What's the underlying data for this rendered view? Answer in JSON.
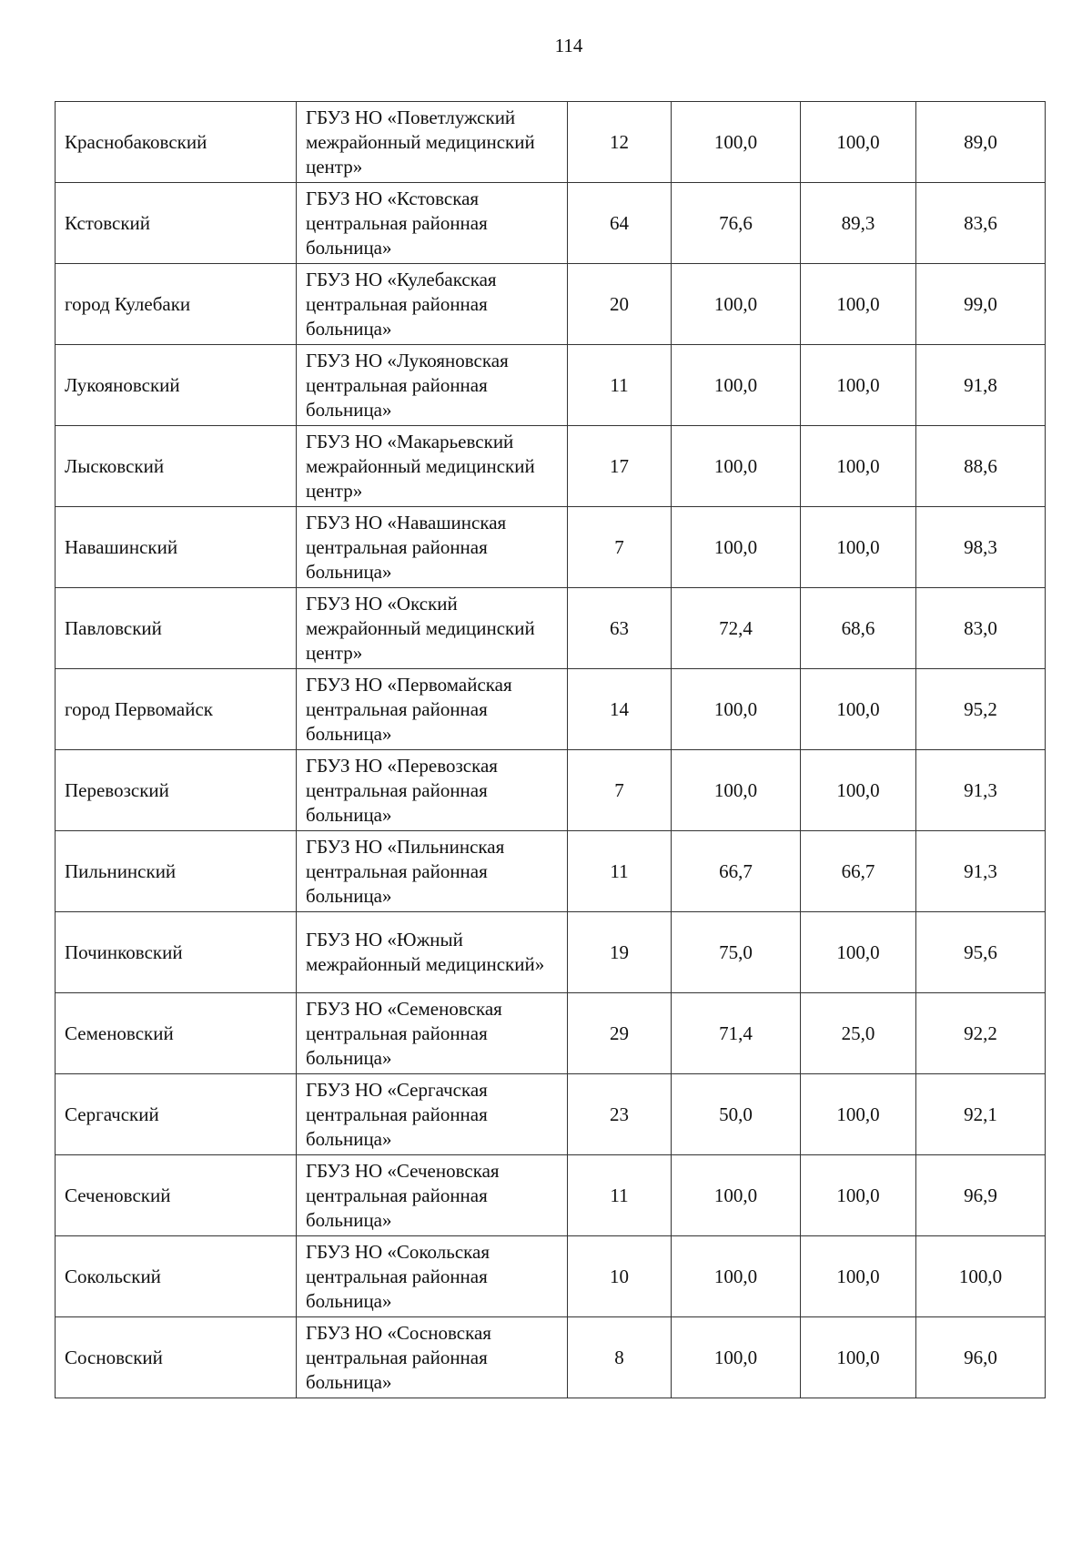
{
  "page_number": "114",
  "rows": [
    {
      "district": "Краснобаковский",
      "org": "ГБУЗ НО «Поветлужский межрайонный медицинский центр»",
      "n": "12",
      "v1": "100,0",
      "v2": "100,0",
      "v3": "89,0"
    },
    {
      "district": "Кстовский",
      "org": "ГБУЗ НО «Кстовская центральная районная больница»",
      "n": "64",
      "v1": "76,6",
      "v2": "89,3",
      "v3": "83,6"
    },
    {
      "district": "город Кулебаки",
      "org": "ГБУЗ НО «Кулебакская центральная районная больница»",
      "n": "20",
      "v1": "100,0",
      "v2": "100,0",
      "v3": "99,0"
    },
    {
      "district": "Лукояновский",
      "org": "ГБУЗ НО «Лукояновская центральная районная больница»",
      "n": "11",
      "v1": "100,0",
      "v2": "100,0",
      "v3": "91,8"
    },
    {
      "district": "Лысковский",
      "org": "ГБУЗ НО «Макарьевский межрайонный медицинский центр»",
      "n": "17",
      "v1": "100,0",
      "v2": "100,0",
      "v3": "88,6"
    },
    {
      "district": "Навашинский",
      "org": "ГБУЗ НО «Навашинская центральная районная больница»",
      "n": "7",
      "v1": "100,0",
      "v2": "100,0",
      "v3": "98,3"
    },
    {
      "district": "Павловский",
      "org": "ГБУЗ НО «Окский межрайонный медицинский центр»",
      "n": "63",
      "v1": "72,4",
      "v2": "68,6",
      "v3": "83,0"
    },
    {
      "district": "город Первомайск",
      "org": "ГБУЗ НО «Первомайская центральная районная больница»",
      "n": "14",
      "v1": "100,0",
      "v2": "100,0",
      "v3": "95,2"
    },
    {
      "district": "Перевозский",
      "org": "ГБУЗ НО «Перевозская центральная районная больница»",
      "n": "7",
      "v1": "100,0",
      "v2": "100,0",
      "v3": "91,3"
    },
    {
      "district": "Пильнинский",
      "org": "ГБУЗ НО «Пильнинская центральная районная больница»",
      "n": "11",
      "v1": "66,7",
      "v2": "66,7",
      "v3": "91,3"
    },
    {
      "district": "Починковский",
      "org": "ГБУЗ НО «Южный межрайонный медицинский»",
      "n": "19",
      "v1": "75,0",
      "v2": "100,0",
      "v3": "95,6"
    },
    {
      "district": "Семеновский",
      "org": "ГБУЗ НО «Семеновская центральная районная больница»",
      "n": "29",
      "v1": "71,4",
      "v2": "25,0",
      "v3": "92,2"
    },
    {
      "district": "Сергачский",
      "org": "ГБУЗ НО «Сергачская центральная районная больница»",
      "n": "23",
      "v1": "50,0",
      "v2": "100,0",
      "v3": "92,1"
    },
    {
      "district": "Сеченовский",
      "org": "ГБУЗ НО «Сеченовская центральная районная больница»",
      "n": "11",
      "v1": "100,0",
      "v2": "100,0",
      "v3": "96,9"
    },
    {
      "district": "Сокольский",
      "org": "ГБУЗ НО «Сокольская центральная районная больница»",
      "n": "10",
      "v1": "100,0",
      "v2": "100,0",
      "v3": "100,0"
    },
    {
      "district": "Сосновский",
      "org": "ГБУЗ НО «Сосновская центральная районная больница»",
      "n": "8",
      "v1": "100,0",
      "v2": "100,0",
      "v3": "96,0"
    }
  ]
}
